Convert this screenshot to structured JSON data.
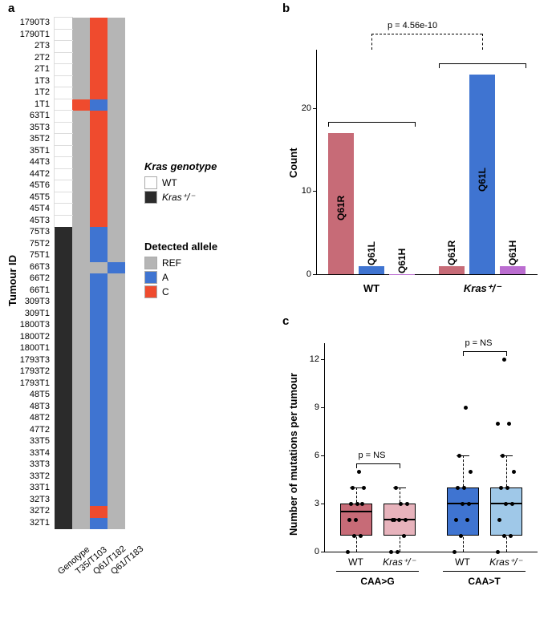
{
  "panelLabels": {
    "a": "a",
    "b": "b",
    "c": "c"
  },
  "colors": {
    "geno_wt": "#ffffff",
    "geno_het": "#2b2b2b",
    "allele_ref": "#b5b5b5",
    "allele_A": "#3f74d1",
    "allele_C": "#ef4b2e",
    "barQ61R": "#c76b77",
    "barQ61L": "#3f74d1",
    "barQ61H": "#bb6dd0",
    "box_wtG": "#c76b77",
    "box_hetG": "#e7b3bc",
    "box_wtT": "#3f74d1",
    "box_hetT": "#9fc8e8"
  },
  "panelA": {
    "yTitle": "Tumour ID",
    "xLabels": [
      "Genotype",
      "T35/T103",
      "Q61/T182",
      "Q61/T183"
    ],
    "rows": [
      {
        "id": "1790T3",
        "geno": "WT",
        "c": [
          "R",
          "C",
          "R"
        ]
      },
      {
        "id": "1790T1",
        "geno": "WT",
        "c": [
          "R",
          "C",
          "R"
        ]
      },
      {
        "id": "2T3",
        "geno": "WT",
        "c": [
          "R",
          "C",
          "R"
        ]
      },
      {
        "id": "2T2",
        "geno": "WT",
        "c": [
          "R",
          "C",
          "R"
        ]
      },
      {
        "id": "2T1",
        "geno": "WT",
        "c": [
          "R",
          "C",
          "R"
        ]
      },
      {
        "id": "1T3",
        "geno": "WT",
        "c": [
          "R",
          "C",
          "R"
        ]
      },
      {
        "id": "1T2",
        "geno": "WT",
        "c": [
          "R",
          "C",
          "R"
        ]
      },
      {
        "id": "1T1",
        "geno": "WT",
        "c": [
          "C",
          "A",
          "R"
        ]
      },
      {
        "id": "63T1",
        "geno": "WT",
        "c": [
          "R",
          "C",
          "R"
        ]
      },
      {
        "id": "35T3",
        "geno": "WT",
        "c": [
          "R",
          "C",
          "R"
        ]
      },
      {
        "id": "35T2",
        "geno": "WT",
        "c": [
          "R",
          "C",
          "R"
        ]
      },
      {
        "id": "35T1",
        "geno": "WT",
        "c": [
          "R",
          "C",
          "R"
        ]
      },
      {
        "id": "44T3",
        "geno": "WT",
        "c": [
          "R",
          "C",
          "R"
        ]
      },
      {
        "id": "44T2",
        "geno": "WT",
        "c": [
          "R",
          "C",
          "R"
        ]
      },
      {
        "id": "45T6",
        "geno": "WT",
        "c": [
          "R",
          "C",
          "R"
        ]
      },
      {
        "id": "45T5",
        "geno": "WT",
        "c": [
          "R",
          "C",
          "R"
        ]
      },
      {
        "id": "45T4",
        "geno": "WT",
        "c": [
          "R",
          "C",
          "R"
        ]
      },
      {
        "id": "45T3",
        "geno": "WT",
        "c": [
          "R",
          "C",
          "R"
        ]
      },
      {
        "id": "75T3",
        "geno": "het",
        "c": [
          "R",
          "A",
          "R"
        ]
      },
      {
        "id": "75T2",
        "geno": "het",
        "c": [
          "R",
          "A",
          "R"
        ]
      },
      {
        "id": "75T1",
        "geno": "het",
        "c": [
          "R",
          "A",
          "R"
        ]
      },
      {
        "id": "66T3",
        "geno": "het",
        "c": [
          "R",
          "R",
          "A"
        ]
      },
      {
        "id": "66T2",
        "geno": "het",
        "c": [
          "R",
          "A",
          "R"
        ]
      },
      {
        "id": "66T1",
        "geno": "het",
        "c": [
          "R",
          "A",
          "R"
        ]
      },
      {
        "id": "309T3",
        "geno": "het",
        "c": [
          "R",
          "A",
          "R"
        ]
      },
      {
        "id": "309T1",
        "geno": "het",
        "c": [
          "R",
          "A",
          "R"
        ]
      },
      {
        "id": "1800T3",
        "geno": "het",
        "c": [
          "R",
          "A",
          "R"
        ]
      },
      {
        "id": "1800T2",
        "geno": "het",
        "c": [
          "R",
          "A",
          "R"
        ]
      },
      {
        "id": "1800T1",
        "geno": "het",
        "c": [
          "R",
          "A",
          "R"
        ]
      },
      {
        "id": "1793T3",
        "geno": "het",
        "c": [
          "R",
          "A",
          "R"
        ]
      },
      {
        "id": "1793T2",
        "geno": "het",
        "c": [
          "R",
          "A",
          "R"
        ]
      },
      {
        "id": "1793T1",
        "geno": "het",
        "c": [
          "R",
          "A",
          "R"
        ]
      },
      {
        "id": "48T5",
        "geno": "het",
        "c": [
          "R",
          "A",
          "R"
        ]
      },
      {
        "id": "48T3",
        "geno": "het",
        "c": [
          "R",
          "A",
          "R"
        ]
      },
      {
        "id": "48T2",
        "geno": "het",
        "c": [
          "R",
          "A",
          "R"
        ]
      },
      {
        "id": "47T2",
        "geno": "het",
        "c": [
          "R",
          "A",
          "R"
        ]
      },
      {
        "id": "33T5",
        "geno": "het",
        "c": [
          "R",
          "A",
          "R"
        ]
      },
      {
        "id": "33T4",
        "geno": "het",
        "c": [
          "R",
          "A",
          "R"
        ]
      },
      {
        "id": "33T3",
        "geno": "het",
        "c": [
          "R",
          "A",
          "R"
        ]
      },
      {
        "id": "33T2",
        "geno": "het",
        "c": [
          "R",
          "A",
          "R"
        ]
      },
      {
        "id": "33T1",
        "geno": "het",
        "c": [
          "R",
          "A",
          "R"
        ]
      },
      {
        "id": "32T3",
        "geno": "het",
        "c": [
          "R",
          "A",
          "R"
        ]
      },
      {
        "id": "32T2",
        "geno": "het",
        "c": [
          "R",
          "C",
          "R"
        ]
      },
      {
        "id": "32T1",
        "geno": "het",
        "c": [
          "R",
          "A",
          "R"
        ]
      }
    ],
    "legend1": {
      "title": "Kras genotype",
      "items": [
        {
          "label": "WT",
          "key": "geno_wt"
        },
        {
          "label": "Kras⁺/⁻",
          "key": "geno_het",
          "italic": true
        }
      ]
    },
    "legend2": {
      "title": "Detected allele",
      "items": [
        {
          "label": "REF",
          "key": "allele_ref"
        },
        {
          "label": "A",
          "key": "allele_A"
        },
        {
          "label": "C",
          "key": "allele_C"
        }
      ]
    }
  },
  "panelB": {
    "yTitle": "Count",
    "yTicks": [
      0,
      10,
      20
    ],
    "yMax": 27,
    "pvalTop": "p = 4.56e-10",
    "groups": [
      {
        "name": "WT",
        "bars": [
          {
            "label": "Q61R",
            "value": 17,
            "colorKey": "barQ61R"
          },
          {
            "label": "Q61L",
            "value": 1,
            "colorKey": "barQ61L"
          },
          {
            "label": "Q61H",
            "value": 0,
            "colorKey": "barQ61H"
          }
        ]
      },
      {
        "name": "Kras⁺/⁻",
        "italic": true,
        "bars": [
          {
            "label": "Q61R",
            "value": 1,
            "colorKey": "barQ61R"
          },
          {
            "label": "Q61L",
            "value": 24,
            "colorKey": "barQ61L"
          },
          {
            "label": "Q61H",
            "value": 1,
            "colorKey": "barQ61H"
          }
        ]
      }
    ]
  },
  "panelC": {
    "yTitle": "Number of mutations per tumour",
    "yTicks": [
      0,
      3,
      6,
      9,
      12
    ],
    "yMax": 13,
    "pvals": [
      "p = NS",
      "p = NS"
    ],
    "categories": [
      {
        "name": "CAA>G",
        "sub": [
          {
            "label": "WT",
            "colorKey": "box_wtG",
            "q1": 1,
            "med": 2.5,
            "q3": 3,
            "whLow": 0,
            "whHigh": 4,
            "points": [
              0,
              1,
              1,
              2,
              2,
              3,
              3,
              3,
              4,
              4,
              5
            ]
          },
          {
            "label": "Kras⁺/⁻",
            "italic": true,
            "colorKey": "box_hetG",
            "q1": 1,
            "med": 2,
            "q3": 3,
            "whLow": 0,
            "whHigh": 4,
            "points": [
              0,
              0,
              1,
              2,
              2,
              2,
              2,
              3,
              3,
              4
            ]
          }
        ]
      },
      {
        "name": "CAA>T",
        "sub": [
          {
            "label": "WT",
            "colorKey": "box_wtT",
            "q1": 1,
            "med": 3,
            "q3": 4,
            "whLow": 0,
            "whHigh": 6,
            "points": [
              0,
              1,
              2,
              2,
              3,
              3,
              4,
              4,
              5,
              6,
              9
            ]
          },
          {
            "label": "Kras⁺/⁻",
            "italic": true,
            "colorKey": "box_hetT",
            "q1": 1,
            "med": 3,
            "q3": 4,
            "whLow": 0,
            "whHigh": 6,
            "points": [
              0,
              1,
              1,
              2,
              3,
              3,
              4,
              4,
              5,
              6,
              8,
              8,
              12
            ]
          }
        ]
      }
    ]
  }
}
